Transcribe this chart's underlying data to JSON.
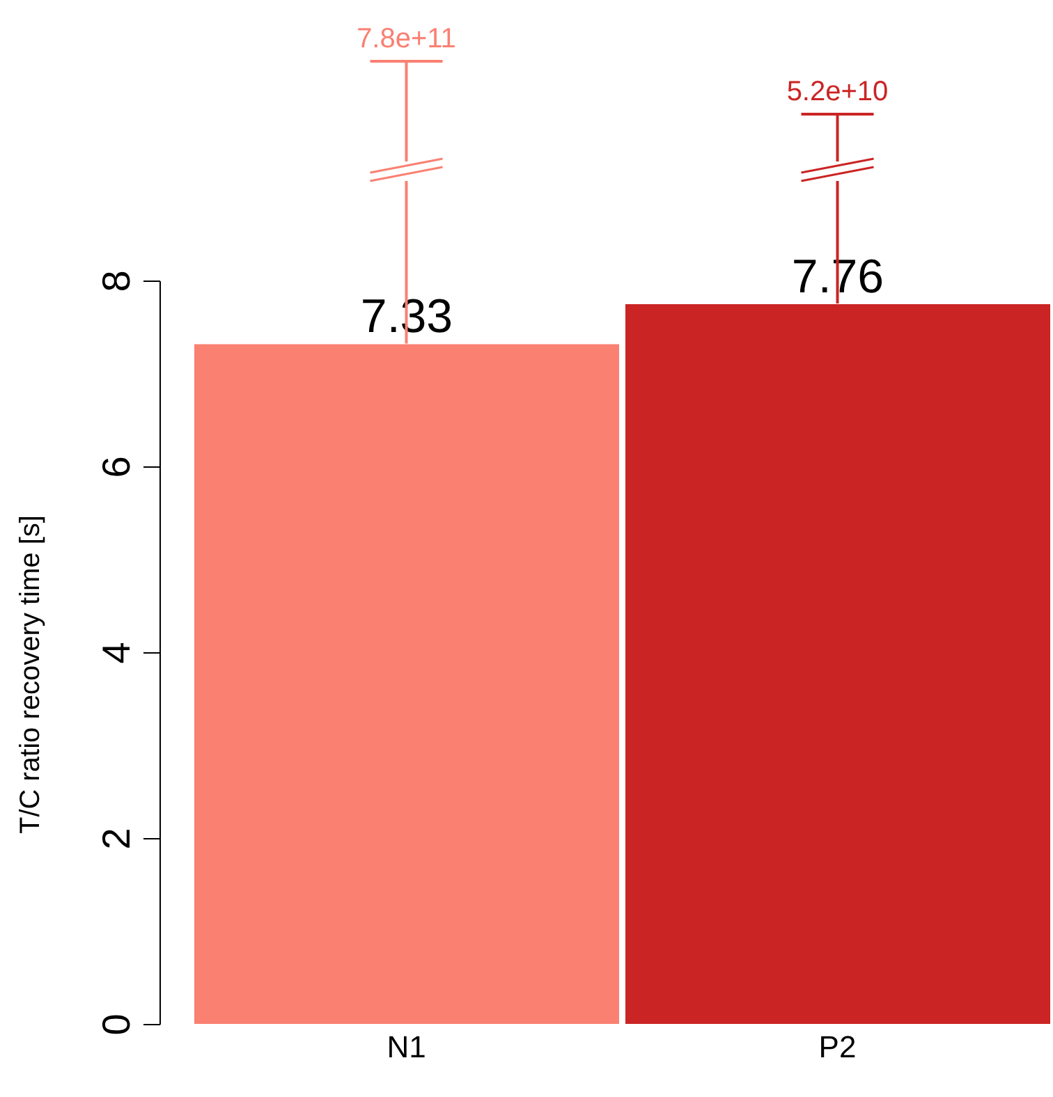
{
  "chart_data": {
    "type": "bar",
    "ylabel": "T/C ratio recovery time [s]",
    "categories": [
      "N1",
      "P2"
    ],
    "values": [
      7.33,
      7.76
    ],
    "colors": [
      "#fa8072",
      "#cb2424"
    ],
    "ylim": [
      0,
      8
    ],
    "yticks": [
      0,
      2,
      4,
      6,
      8
    ],
    "data_labels": true,
    "grid": false,
    "legend": false,
    "annotations": [
      {
        "text": "7.8e+11",
        "x": "N1"
      },
      {
        "text": "5.2e+10",
        "x": "P2"
      }
    ]
  }
}
